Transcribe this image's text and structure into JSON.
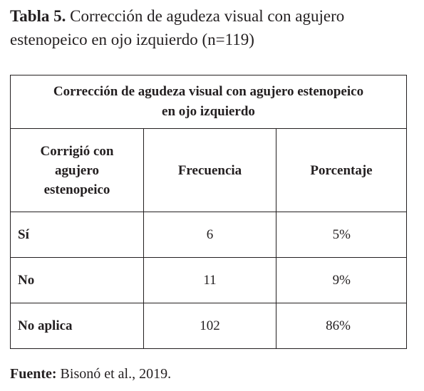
{
  "title": {
    "label": "Tabla 5.",
    "text": "Corrección de agudeza visual con agujero estenopeico en ojo izquierdo (n=119)"
  },
  "table": {
    "caption": "Corrección de agudeza visual con agujero estenopeico en ojo izquierdo",
    "header": [
      "Corrigió con agujero estenopeico",
      "Frecuencia",
      "Porcentaje"
    ],
    "rows": [
      [
        "Sí",
        6,
        "5%"
      ],
      [
        "No",
        11,
        "9%"
      ],
      [
        "No aplica",
        102,
        "86%"
      ]
    ]
  },
  "footer": {
    "label": "Fuente:",
    "text": "Bisonó et al., 2019."
  }
}
